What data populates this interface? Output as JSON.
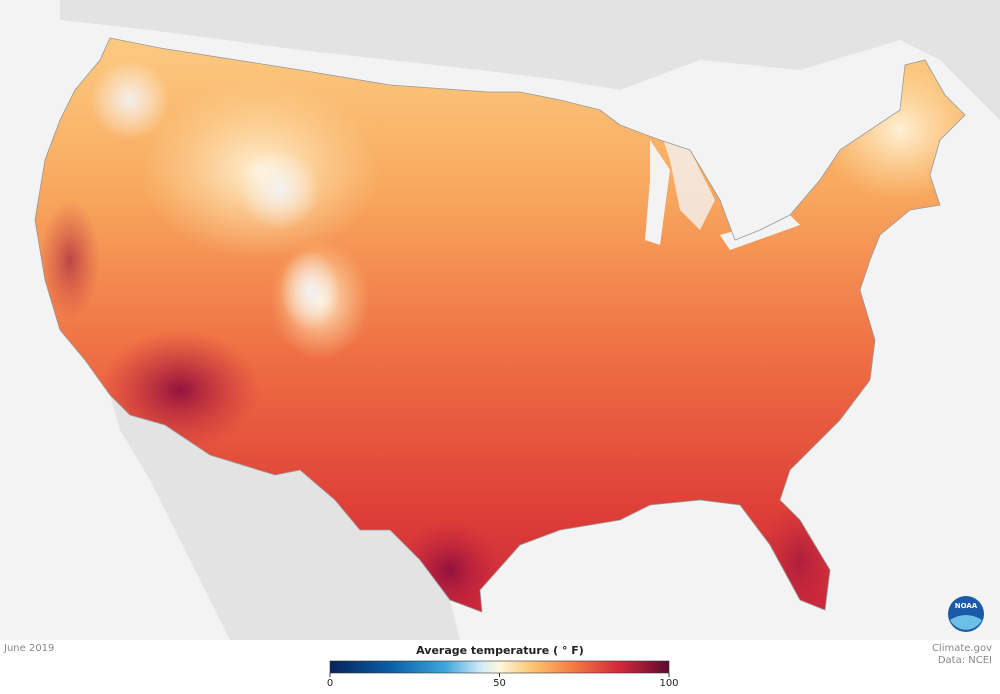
{
  "map": {
    "date": "June 2019",
    "credit": "Climate.gov",
    "source": "Data: NCEI",
    "logo": "NOAA"
  },
  "legend": {
    "title": "Average temperature ( ° F)",
    "range": [
      0,
      100
    ],
    "ticks": [
      0,
      50,
      100
    ]
  }
}
